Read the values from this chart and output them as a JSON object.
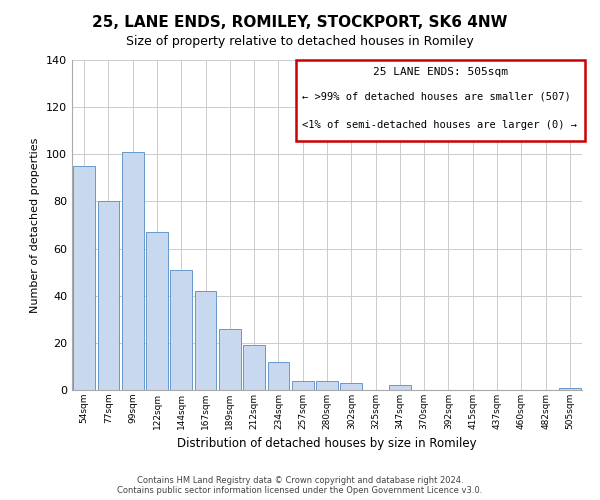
{
  "title": "25, LANE ENDS, ROMILEY, STOCKPORT, SK6 4NW",
  "subtitle": "Size of property relative to detached houses in Romiley",
  "xlabel": "Distribution of detached houses by size in Romiley",
  "ylabel": "Number of detached properties",
  "bar_labels": [
    "54sqm",
    "77sqm",
    "99sqm",
    "122sqm",
    "144sqm",
    "167sqm",
    "189sqm",
    "212sqm",
    "234sqm",
    "257sqm",
    "280sqm",
    "302sqm",
    "325sqm",
    "347sqm",
    "370sqm",
    "392sqm",
    "415sqm",
    "437sqm",
    "460sqm",
    "482sqm",
    "505sqm"
  ],
  "bar_values": [
    95,
    80,
    101,
    67,
    51,
    42,
    26,
    19,
    12,
    4,
    4,
    3,
    0,
    2,
    0,
    0,
    0,
    0,
    0,
    0,
    1
  ],
  "bar_color": "#c8d8ee",
  "bar_edge_color": "#6699cc",
  "ylim": [
    0,
    140
  ],
  "yticks": [
    0,
    20,
    40,
    60,
    80,
    100,
    120,
    140
  ],
  "annotation_box_text_line1": "25 LANE ENDS: 505sqm",
  "annotation_box_text_line2": "← >99% of detached houses are smaller (507)",
  "annotation_box_text_line3": "<1% of semi-detached houses are larger (0) →",
  "annotation_box_edge_color": "#cc0000",
  "footer_line1": "Contains HM Land Registry data © Crown copyright and database right 2024.",
  "footer_line2": "Contains public sector information licensed under the Open Government Licence v3.0.",
  "background_color": "#ffffff",
  "grid_color": "#cccccc"
}
